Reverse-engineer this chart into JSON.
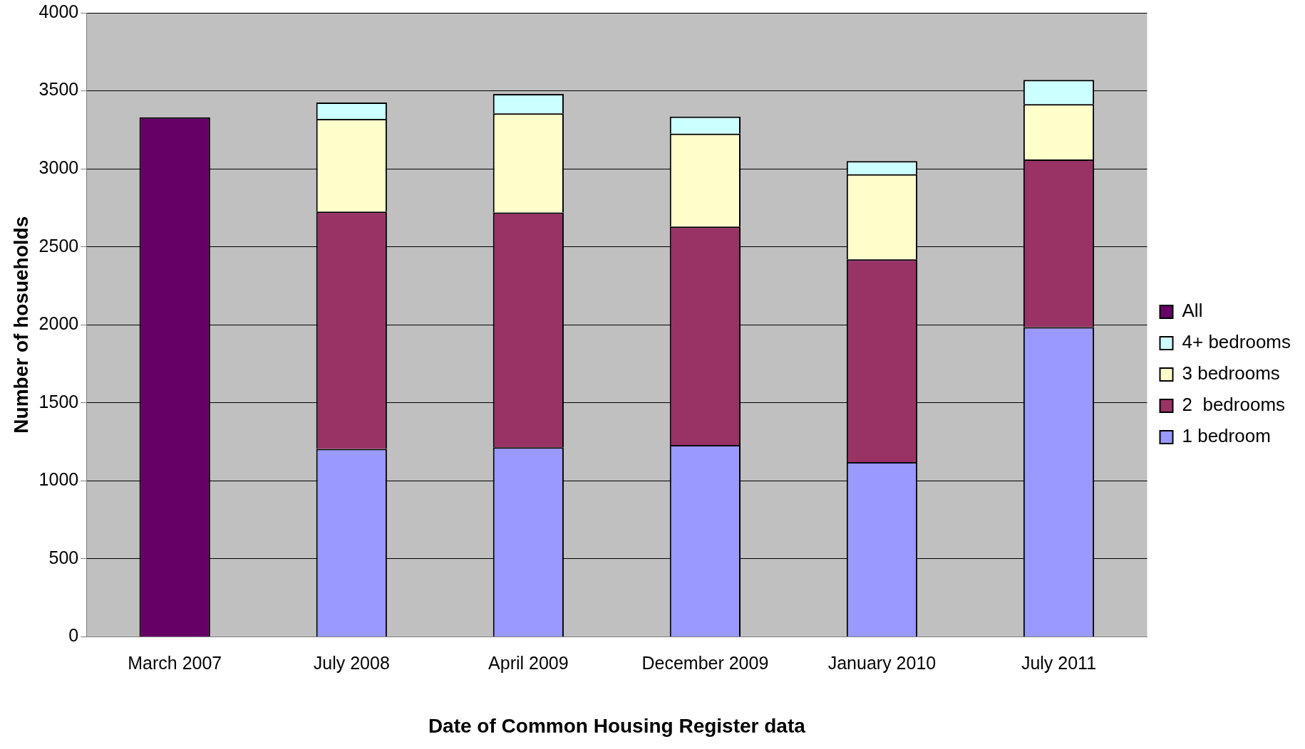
{
  "chart_data": {
    "type": "bar",
    "stacked": true,
    "xlabel": "Date of Common Housing Register data",
    "ylabel": "Number of hosueholds",
    "categories": [
      "March 2007",
      "July 2008",
      "April 2009",
      "December 2009",
      "January 2010",
      "July 2011"
    ],
    "series": [
      {
        "name": "1 bedroom",
        "color": "#9999ff",
        "values": [
          null,
          1205,
          1215,
          1230,
          1120,
          1985
        ]
      },
      {
        "name": "2  bedrooms",
        "color": "#993366",
        "values": [
          null,
          1520,
          1505,
          1400,
          1300,
          1075
        ]
      },
      {
        "name": "3 bedrooms",
        "color": "#ffffcc",
        "values": [
          null,
          595,
          635,
          595,
          545,
          355
        ]
      },
      {
        "name": "4+ bedrooms",
        "color": "#ccffff",
        "values": [
          null,
          105,
          125,
          110,
          85,
          155
        ]
      },
      {
        "name": "All",
        "color": "#660066",
        "values": [
          3330,
          null,
          null,
          null,
          null,
          null
        ]
      }
    ],
    "ylim": [
      0,
      4000
    ],
    "yticks": [
      0,
      500,
      1000,
      1500,
      2000,
      2500,
      3000,
      3500,
      4000
    ],
    "grid": "y",
    "legend": "right"
  }
}
